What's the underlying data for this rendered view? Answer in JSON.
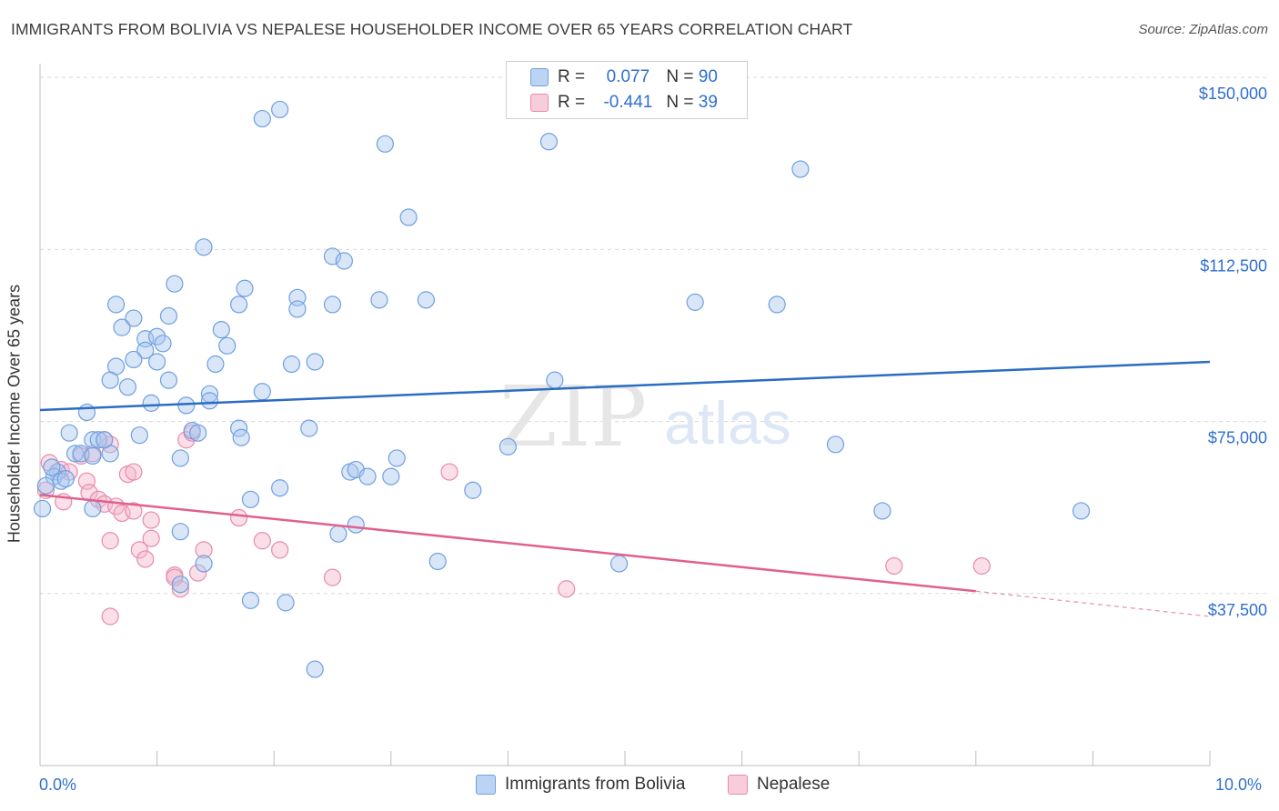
{
  "header": {
    "title": "IMMIGRANTS FROM BOLIVIA VS NEPALESE HOUSEHOLDER INCOME OVER 65 YEARS CORRELATION CHART",
    "source": "Source: ZipAtlas.com"
  },
  "watermark": {
    "zip": "ZIP",
    "atlas": "atlas"
  },
  "legend": {
    "rows": [
      {
        "r_label": "R =",
        "r_value": "0.077",
        "n_label": "N =",
        "n_value": "90"
      },
      {
        "r_label": "R =",
        "r_value": "-0.441",
        "n_label": "N =",
        "n_value": "39"
      }
    ]
  },
  "bottom_legend": {
    "series1": "Immigrants from Bolivia",
    "series2": "Nepalese"
  },
  "colors": {
    "blue_fill": "#a9c8f0",
    "blue_stroke": "#6f9fe0",
    "blue_line": "#2b6cc4",
    "pink_fill": "#f5b8cc",
    "pink_stroke": "#e88aaa",
    "pink_line": "#e0608e",
    "axis_text": "#2f6fd1",
    "grid": "#d7d7d7"
  },
  "chart_data": {
    "type": "scatter",
    "title": "IMMIGRANTS FROM BOLIVIA VS NEPALESE HOUSEHOLDER INCOME OVER 65 YEARS CORRELATION CHART",
    "xlabel": "",
    "ylabel": "Householder Income Over 65 years",
    "xlim": [
      0,
      10
    ],
    "ylim": [
      0,
      153000
    ],
    "x_tick_labels": [
      "0.0%",
      "10.0%"
    ],
    "y_ticks": [
      37500,
      75000,
      112500,
      150000
    ],
    "y_tick_labels": [
      "$37,500",
      "$75,000",
      "$112,500",
      "$150,000"
    ],
    "grid": true,
    "legend_placement": "top-center",
    "series": [
      {
        "name": "Immigrants from Bolivia",
        "R": 0.077,
        "N": 90,
        "trend": {
          "x0": 0.0,
          "y0": 77500,
          "x1": 10.0,
          "y1": 88000
        },
        "points": [
          [
            1.9,
            141000
          ],
          [
            2.05,
            143000
          ],
          [
            2.95,
            135500
          ],
          [
            4.35,
            136000
          ],
          [
            6.5,
            130000
          ],
          [
            1.4,
            113000
          ],
          [
            3.15,
            119500
          ],
          [
            2.5,
            111000
          ],
          [
            2.6,
            110000
          ],
          [
            1.15,
            105000
          ],
          [
            1.75,
            104000
          ],
          [
            0.65,
            100500
          ],
          [
            1.7,
            100500
          ],
          [
            2.2,
            102000
          ],
          [
            2.2,
            99500
          ],
          [
            2.5,
            100500
          ],
          [
            2.9,
            101500
          ],
          [
            3.3,
            101500
          ],
          [
            5.6,
            101000
          ],
          [
            6.3,
            100500
          ],
          [
            0.8,
            97500
          ],
          [
            1.1,
            98000
          ],
          [
            0.7,
            95500
          ],
          [
            1.55,
            95000
          ],
          [
            0.9,
            93000
          ],
          [
            1.0,
            93500
          ],
          [
            1.05,
            92000
          ],
          [
            0.9,
            90500
          ],
          [
            1.6,
            91500
          ],
          [
            0.8,
            88500
          ],
          [
            1.0,
            88000
          ],
          [
            0.65,
            87000
          ],
          [
            1.5,
            87500
          ],
          [
            2.15,
            87500
          ],
          [
            2.35,
            88000
          ],
          [
            0.6,
            84000
          ],
          [
            1.1,
            84000
          ],
          [
            0.75,
            82500
          ],
          [
            1.45,
            81000
          ],
          [
            1.9,
            81500
          ],
          [
            4.4,
            84000
          ],
          [
            0.95,
            79000
          ],
          [
            1.25,
            78500
          ],
          [
            1.45,
            79500
          ],
          [
            0.4,
            77000
          ],
          [
            0.25,
            72500
          ],
          [
            0.45,
            71000
          ],
          [
            0.5,
            71000
          ],
          [
            1.3,
            73000
          ],
          [
            1.35,
            72500
          ],
          [
            0.85,
            72000
          ],
          [
            1.7,
            73500
          ],
          [
            1.72,
            71500
          ],
          [
            2.3,
            73500
          ],
          [
            0.3,
            68000
          ],
          [
            0.35,
            68000
          ],
          [
            0.6,
            68000
          ],
          [
            0.45,
            67500
          ],
          [
            1.2,
            67000
          ],
          [
            3.05,
            67000
          ],
          [
            4.0,
            69500
          ],
          [
            6.8,
            70000
          ],
          [
            0.15,
            64000
          ],
          [
            0.12,
            63000
          ],
          [
            0.18,
            62000
          ],
          [
            0.22,
            62500
          ],
          [
            0.05,
            61000
          ],
          [
            2.65,
            64000
          ],
          [
            2.7,
            64500
          ],
          [
            2.8,
            63000
          ],
          [
            3.0,
            63000
          ],
          [
            2.05,
            60500
          ],
          [
            3.7,
            60000
          ],
          [
            1.8,
            58000
          ],
          [
            0.45,
            56000
          ],
          [
            0.02,
            56000
          ],
          [
            2.7,
            52500
          ],
          [
            1.2,
            51000
          ],
          [
            2.55,
            50500
          ],
          [
            7.2,
            55500
          ],
          [
            8.9,
            55500
          ],
          [
            1.4,
            44000
          ],
          [
            3.4,
            44500
          ],
          [
            4.95,
            44000
          ],
          [
            1.2,
            39500
          ],
          [
            1.8,
            36000
          ],
          [
            2.1,
            35500
          ],
          [
            2.35,
            21000
          ],
          [
            0.1,
            65000
          ],
          [
            0.55,
            71000
          ]
        ]
      },
      {
        "name": "Nepalese",
        "R": -0.441,
        "N": 39,
        "trend": {
          "x0": 0.0,
          "y0": 59000,
          "x1": 8.0,
          "y1": 38000,
          "dashed_to_x": 10.0,
          "dashed_to_y": 32500
        },
        "points": [
          [
            0.08,
            66000
          ],
          [
            0.18,
            64500
          ],
          [
            0.25,
            64000
          ],
          [
            0.35,
            67500
          ],
          [
            0.45,
            68000
          ],
          [
            0.55,
            71000
          ],
          [
            0.6,
            70000
          ],
          [
            0.75,
            63500
          ],
          [
            0.8,
            64000
          ],
          [
            1.25,
            71000
          ],
          [
            1.3,
            72500
          ],
          [
            0.4,
            62000
          ],
          [
            0.42,
            59500
          ],
          [
            0.5,
            58000
          ],
          [
            0.55,
            57000
          ],
          [
            0.65,
            56500
          ],
          [
            0.7,
            55000
          ],
          [
            0.2,
            57500
          ],
          [
            0.8,
            55500
          ],
          [
            0.95,
            53500
          ],
          [
            1.7,
            54000
          ],
          [
            0.95,
            49500
          ],
          [
            0.6,
            49000
          ],
          [
            1.4,
            47000
          ],
          [
            1.9,
            49000
          ],
          [
            2.05,
            47000
          ],
          [
            0.85,
            47000
          ],
          [
            0.9,
            45000
          ],
          [
            1.35,
            42000
          ],
          [
            1.15,
            41500
          ],
          [
            1.2,
            38500
          ],
          [
            2.5,
            41000
          ],
          [
            4.5,
            38500
          ],
          [
            7.3,
            43500
          ],
          [
            8.05,
            43500
          ],
          [
            0.6,
            32500
          ],
          [
            1.15,
            41000
          ],
          [
            3.5,
            64000
          ],
          [
            0.05,
            60000
          ]
        ]
      }
    ]
  }
}
